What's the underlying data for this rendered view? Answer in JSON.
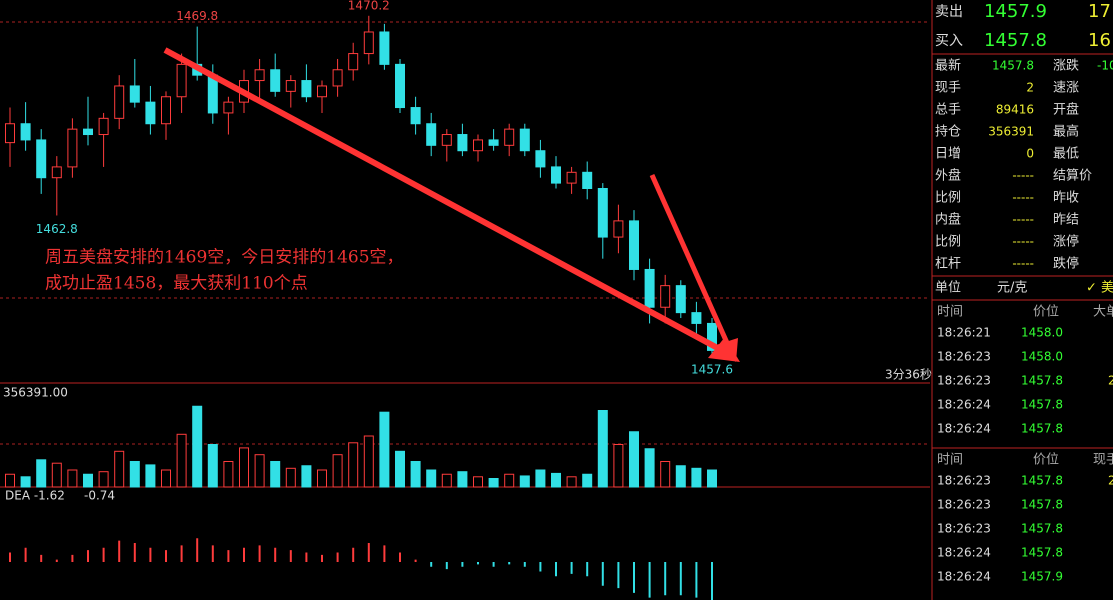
{
  "chart": {
    "ylim": [
      1457.0,
      1470.6
    ],
    "candles": [
      [
        1465.5,
        1466.8,
        1464.6,
        1466.2
      ],
      [
        1466.2,
        1467.0,
        1465.2,
        1465.6
      ],
      [
        1465.6,
        1466.0,
        1463.6,
        1464.2
      ],
      [
        1464.2,
        1465.0,
        1462.8,
        1464.6
      ],
      [
        1464.6,
        1466.4,
        1464.2,
        1466.0
      ],
      [
        1466.0,
        1467.2,
        1465.4,
        1465.8
      ],
      [
        1465.8,
        1466.6,
        1464.6,
        1466.4
      ],
      [
        1466.4,
        1468.0,
        1466.0,
        1467.6
      ],
      [
        1467.6,
        1468.6,
        1466.8,
        1467.0
      ],
      [
        1467.0,
        1467.6,
        1465.8,
        1466.2
      ],
      [
        1466.2,
        1467.4,
        1465.6,
        1467.2
      ],
      [
        1467.2,
        1468.8,
        1466.6,
        1468.4
      ],
      [
        1468.4,
        1469.8,
        1467.8,
        1468.0
      ],
      [
        1468.0,
        1468.4,
        1466.2,
        1466.6
      ],
      [
        1466.6,
        1467.2,
        1465.8,
        1467.0
      ],
      [
        1467.0,
        1468.2,
        1466.6,
        1467.8
      ],
      [
        1467.8,
        1468.6,
        1467.0,
        1468.2
      ],
      [
        1468.2,
        1468.8,
        1467.2,
        1467.4
      ],
      [
        1467.4,
        1468.0,
        1466.8,
        1467.8
      ],
      [
        1467.8,
        1468.4,
        1467.0,
        1467.2
      ],
      [
        1467.2,
        1467.8,
        1466.6,
        1467.6
      ],
      [
        1467.6,
        1468.6,
        1467.2,
        1468.2
      ],
      [
        1468.2,
        1469.2,
        1467.8,
        1468.8
      ],
      [
        1468.8,
        1470.2,
        1468.4,
        1469.6
      ],
      [
        1469.6,
        1469.9,
        1468.2,
        1468.4
      ],
      [
        1468.4,
        1468.6,
        1466.6,
        1466.8
      ],
      [
        1466.8,
        1467.2,
        1465.8,
        1466.2
      ],
      [
        1466.2,
        1466.6,
        1465.0,
        1465.4
      ],
      [
        1465.4,
        1466.0,
        1464.8,
        1465.8
      ],
      [
        1465.8,
        1466.2,
        1465.0,
        1465.2
      ],
      [
        1465.2,
        1465.8,
        1464.8,
        1465.6
      ],
      [
        1465.6,
        1466.0,
        1465.2,
        1465.4
      ],
      [
        1465.4,
        1466.2,
        1465.0,
        1466.0
      ],
      [
        1466.0,
        1466.2,
        1465.0,
        1465.2
      ],
      [
        1465.2,
        1465.6,
        1464.2,
        1464.6
      ],
      [
        1464.6,
        1465.0,
        1463.8,
        1464.0
      ],
      [
        1464.0,
        1464.6,
        1463.6,
        1464.4
      ],
      [
        1464.4,
        1464.8,
        1463.4,
        1463.8
      ],
      [
        1463.8,
        1464.0,
        1461.2,
        1462.0
      ],
      [
        1462.0,
        1463.2,
        1461.4,
        1462.6
      ],
      [
        1462.6,
        1463.0,
        1460.4,
        1460.8
      ],
      [
        1460.8,
        1461.2,
        1458.8,
        1459.4
      ],
      [
        1459.4,
        1460.6,
        1458.8,
        1460.2
      ],
      [
        1460.2,
        1460.4,
        1459.0,
        1459.2
      ],
      [
        1459.2,
        1459.6,
        1458.4,
        1458.8
      ],
      [
        1458.8,
        1459.0,
        1457.6,
        1457.8
      ]
    ],
    "vlim": [
      0,
      1000
    ],
    "volumes": [
      150,
      120,
      320,
      280,
      200,
      150,
      180,
      420,
      300,
      260,
      200,
      620,
      950,
      500,
      300,
      460,
      380,
      300,
      220,
      250,
      200,
      380,
      520,
      600,
      880,
      420,
      300,
      200,
      150,
      180,
      120,
      100,
      150,
      130,
      200,
      160,
      120,
      150,
      900,
      500,
      650,
      450,
      300,
      250,
      220,
      200
    ],
    "macdlim": [
      -1.6,
      1.6
    ],
    "macd": [
      0.4,
      0.6,
      0.3,
      0.1,
      0.3,
      0.5,
      0.6,
      0.9,
      0.8,
      0.6,
      0.5,
      0.7,
      1.0,
      0.7,
      0.5,
      0.6,
      0.7,
      0.6,
      0.5,
      0.4,
      0.3,
      0.4,
      0.6,
      0.8,
      0.7,
      0.4,
      0.1,
      -0.2,
      -0.3,
      -0.2,
      -0.1,
      -0.2,
      -0.1,
      -0.2,
      -0.4,
      -0.6,
      -0.5,
      -0.6,
      -1.0,
      -1.1,
      -1.3,
      -1.5,
      -1.4,
      -1.4,
      -1.5,
      -1.6
    ],
    "labels": {
      "high1": "1469.8",
      "high2": "1470.2",
      "low1": "1462.8",
      "last": "1457.6",
      "oi": "356391.00",
      "dea": "DEA -1.62",
      "macd": "-0.74",
      "timer": "3分36秒"
    },
    "annotation": [
      "周五美盘安排的1469空，今日安排的1465空，",
      "成功止盈1458，最大获利110个点"
    ]
  },
  "panel": {
    "ask": [
      "卖出",
      "1457.9",
      "17"
    ],
    "bid": [
      "买入",
      "1457.8",
      "16"
    ],
    "left": [
      [
        "最新",
        "1457.8"
      ],
      [
        "现手",
        "2"
      ],
      [
        "总手",
        "89416"
      ],
      [
        "持仓",
        "356391"
      ],
      [
        "日增",
        "0"
      ],
      [
        "外盘",
        "-----"
      ],
      [
        "比例",
        "-----"
      ],
      [
        "内盘",
        "-----"
      ],
      [
        "比例",
        "-----"
      ],
      [
        "杠杆",
        "-----"
      ]
    ],
    "right": [
      [
        "涨跌",
        "-10"
      ],
      [
        "速涨",
        ""
      ],
      [
        "开盘",
        ""
      ],
      [
        "最高",
        ""
      ],
      [
        "最低",
        ""
      ],
      [
        "结算价",
        ""
      ],
      [
        "昨收",
        ""
      ],
      [
        "昨结",
        ""
      ],
      [
        "涨停",
        ""
      ],
      [
        "跌停",
        ""
      ]
    ],
    "unit": [
      "单位",
      "元/克",
      "✓ 美"
    ],
    "ticks_header": [
      "时间",
      "价位",
      "大单"
    ],
    "ticks": [
      [
        "18:26:21",
        "1458.0",
        ""
      ],
      [
        "18:26:23",
        "1458.0",
        ""
      ],
      [
        "18:26:23",
        "1457.8",
        "2"
      ],
      [
        "18:26:24",
        "1457.8",
        ""
      ],
      [
        "18:26:24",
        "1457.8",
        ""
      ]
    ],
    "trades_header": [
      "时间",
      "价位",
      "现手"
    ],
    "trades": [
      [
        "18:26:23",
        "1457.8",
        "2"
      ],
      [
        "18:26:23",
        "1457.8",
        ""
      ],
      [
        "18:26:23",
        "1457.8",
        ""
      ],
      [
        "18:26:24",
        "1457.8",
        ""
      ],
      [
        "18:26:24",
        "1457.9",
        ""
      ]
    ]
  }
}
